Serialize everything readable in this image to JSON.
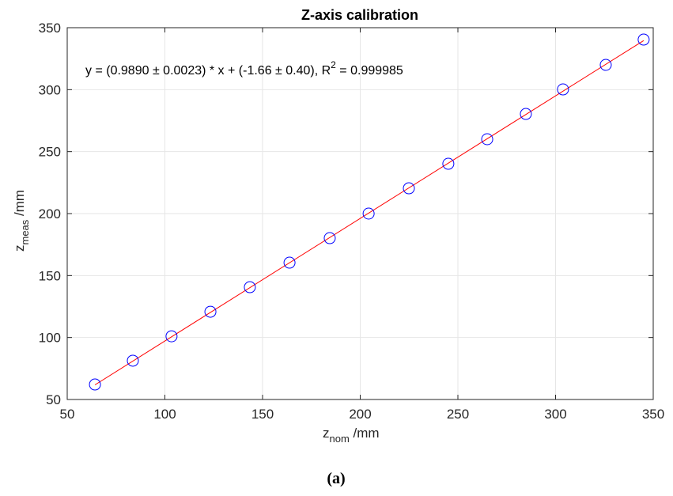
{
  "chart_data": {
    "type": "scatter",
    "title": "Z-axis calibration",
    "annotation": [
      "y = (0.9890 ± 0.0023) * x + (-1.66 ± 0.40), R",
      "2",
      " = 0.999985"
    ],
    "x_label": [
      "z",
      "nom",
      " /mm"
    ],
    "y_label": [
      "z",
      "meas",
      " /mm"
    ],
    "points": {
      "color": "#0000ff",
      "x": [
        64.2,
        83.6,
        103.4,
        123.3,
        143.5,
        163.8,
        184.4,
        204.3,
        224.9,
        245.1,
        265.0,
        284.8,
        303.8,
        325.7,
        345.1
      ],
      "values": [
        62.1,
        81.3,
        101.0,
        120.8,
        140.6,
        160.4,
        180.2,
        200.0,
        220.4,
        240.2,
        260.0,
        280.4,
        300.2,
        320.0,
        340.4
      ]
    },
    "fit_line": {
      "color": "#ff0000",
      "x": [
        64.2,
        345.1
      ],
      "values": [
        61.8,
        339.6
      ]
    },
    "xlim": [
      50,
      350
    ],
    "xticks": [
      50,
      100,
      150,
      200,
      250,
      300,
      350
    ],
    "ylim": [
      50,
      350
    ],
    "yticks": [
      50,
      100,
      150,
      200,
      250,
      300,
      350
    ],
    "grid": true
  },
  "caption": "(a)"
}
